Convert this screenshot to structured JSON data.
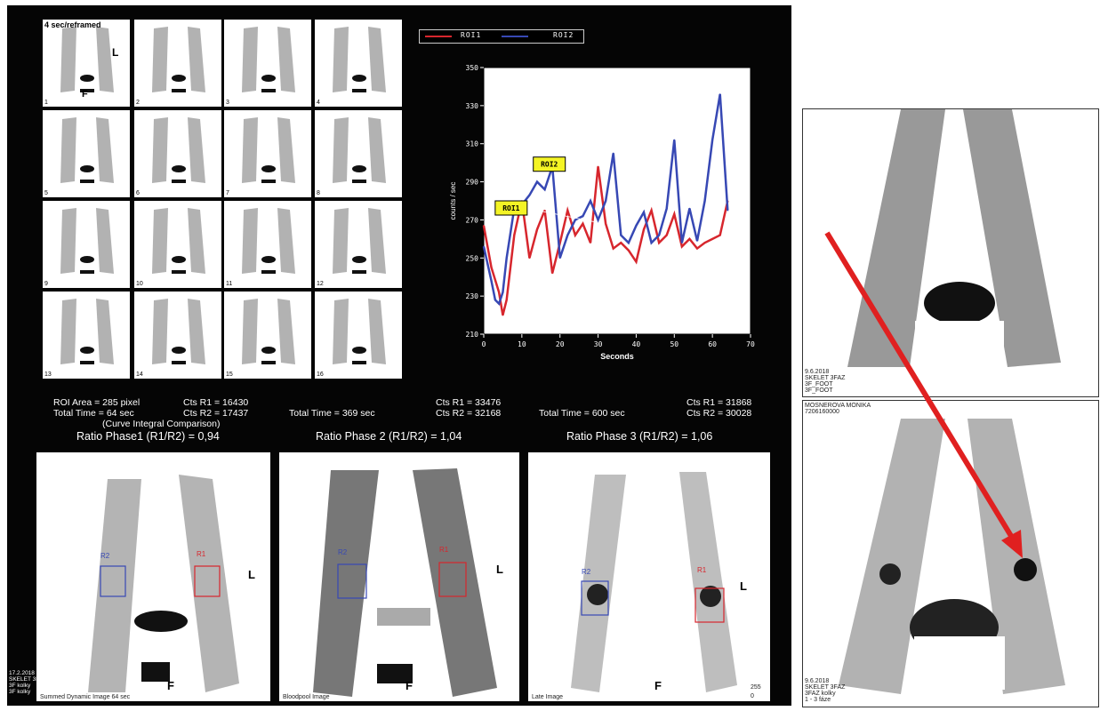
{
  "thumbnails": {
    "title": "4 sec/reframed",
    "marker_L": "L",
    "marker_F": "F",
    "frame_numbers": [
      "1",
      "2",
      "3",
      "4",
      "5",
      "6",
      "7",
      "8",
      "9",
      "10",
      "11",
      "12",
      "13",
      "14",
      "15",
      "16"
    ]
  },
  "chart_data": {
    "type": "line",
    "xlabel": "Seconds",
    "ylabel": "counts / sec",
    "xlim": [
      0,
      70
    ],
    "ylim": [
      210,
      350
    ],
    "x_ticks": [
      "0",
      "10",
      "20",
      "30",
      "40",
      "50",
      "60",
      "70"
    ],
    "y_ticks": [
      "210",
      "230",
      "250",
      "270",
      "290",
      "310",
      "330",
      "350"
    ],
    "legend_position": "top",
    "series": [
      {
        "name": "ROI1",
        "color": "#d7262d",
        "x": [
          0,
          2,
          4,
          5,
          6,
          8,
          10,
          12,
          14,
          16,
          18,
          19,
          20,
          22,
          24,
          26,
          28,
          30,
          32,
          34,
          36,
          38,
          40,
          42,
          44,
          46,
          48,
          50,
          52,
          54,
          56,
          58,
          60,
          62,
          64
        ],
        "y": [
          267,
          245,
          232,
          220,
          228,
          262,
          280,
          250,
          265,
          275,
          242,
          250,
          258,
          275,
          262,
          268,
          258,
          298,
          268,
          255,
          258,
          254,
          248,
          265,
          275,
          258,
          262,
          273,
          256,
          260,
          255,
          258,
          260,
          262,
          280
        ]
      },
      {
        "name": "ROI2",
        "color": "#3748b4",
        "x": [
          0,
          2,
          3,
          4,
          5,
          6,
          8,
          10,
          12,
          14,
          16,
          18,
          20,
          22,
          24,
          26,
          28,
          30,
          32,
          34,
          36,
          38,
          40,
          42,
          44,
          46,
          48,
          50,
          52,
          54,
          56,
          58,
          60,
          62,
          64
        ],
        "y": [
          256,
          238,
          228,
          226,
          232,
          250,
          276,
          278,
          283,
          290,
          286,
          298,
          250,
          262,
          270,
          272,
          280,
          270,
          280,
          305,
          262,
          258,
          267,
          274,
          258,
          262,
          276,
          312,
          258,
          276,
          259,
          280,
          312,
          336,
          275
        ]
      }
    ],
    "annotations": [
      "ROI2",
      "ROI1"
    ]
  },
  "stats": {
    "phase1": {
      "roi_area": "ROI Area = 285 pixel",
      "cts_r1": "Cts R1 = 16430",
      "total_time": "Total Time = 64 sec",
      "cts_r2": "Cts R2 = 17437",
      "note": "(Curve Integral Comparison)",
      "ratio": "Ratio Phase1 (R1/R2) = 0,94"
    },
    "phase2": {
      "cts_r1": "Cts R1 = 33476",
      "total_time": "Total Time = 369 sec",
      "cts_r2": "Cts R2 = 32168",
      "ratio": "Ratio Phase 2 (R1/R2) = 1,04"
    },
    "phase3": {
      "cts_r1": "Cts R1 = 31868",
      "total_time": "Total Time = 600 sec",
      "cts_r2": "Cts R2 = 30028",
      "ratio": "Ratio Phase 3 (R1/R2) = 1,06"
    }
  },
  "scans": {
    "scan1": {
      "caption": "Summed Dynamic Image 64 sec",
      "r1": "R1",
      "r2": "R2",
      "L": "L",
      "F": "F"
    },
    "scan2": {
      "caption": "Bloodpool Image",
      "r1": "R1",
      "r2": "R2",
      "L": "L",
      "F": "F"
    },
    "scan3": {
      "caption": "Late Image",
      "r1": "R1",
      "r2": "R2",
      "L": "L",
      "F": "F",
      "counter_a": "255",
      "counter_b": "0"
    }
  },
  "footer_info": {
    "line1": "17.2.2018",
    "line2": "SKELET 3FAZ",
    "line3": "3F kolky",
    "line4": "3F kolky"
  },
  "right_top": {
    "line1": "9.6.2018",
    "line2": "SKELET 3FAZ",
    "line3": "3F_FOOT",
    "line4": "3F_FOOT"
  },
  "right_bottom": {
    "patient": "MOSNEROVA MONIKA",
    "id": "7206160000",
    "line1": "9.6.2018",
    "line2": "SKELET 3FAZ",
    "line3": "3FAZ kolky",
    "line4": "1 - 3 fáze"
  },
  "colors": {
    "roi1": "#d7262d",
    "roi2": "#3748b4",
    "arrow": "#e02020",
    "annotation_bg": "#f4f425"
  }
}
